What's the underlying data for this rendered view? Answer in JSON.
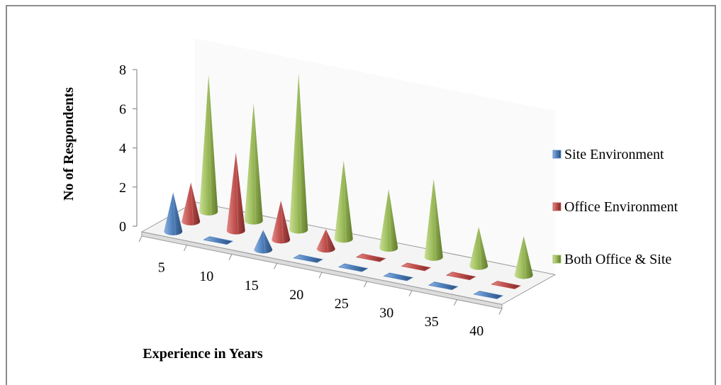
{
  "chart_data": {
    "type": "bar",
    "style": "3d-cone",
    "categories": [
      "5",
      "10",
      "15",
      "20",
      "25",
      "30",
      "35",
      "40"
    ],
    "series": [
      {
        "name": "Site Environment",
        "color": "#4f81bd",
        "values": [
          2,
          0,
          1,
          0,
          0,
          0,
          0,
          0
        ]
      },
      {
        "name": "Office Environment",
        "color": "#c0504d",
        "values": [
          2,
          4,
          2,
          1,
          0,
          0,
          0,
          0
        ]
      },
      {
        "name": "Both Office & Site",
        "color": "#9bbb59",
        "values": [
          7,
          6,
          8,
          4,
          3,
          4,
          2,
          2
        ]
      }
    ],
    "yticks": [
      "0",
      "2",
      "4",
      "6",
      "8"
    ],
    "ylim": [
      0,
      8
    ],
    "xlabel": "Experience in Years",
    "ylabel": "No of Respondents",
    "legend_position": "right",
    "grid": false
  }
}
